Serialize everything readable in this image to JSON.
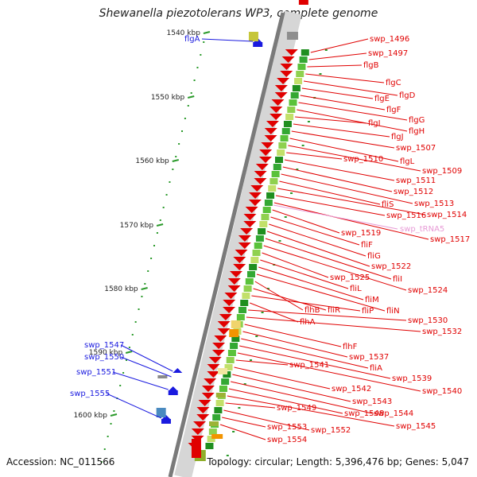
{
  "title": "Shewanella piezotolerans WP3, complete genome",
  "accession": "Accession: NC_011566",
  "summary": "Topology: circular; Length: 5,396,476 bp; Genes: 5,047",
  "ticks": [
    "1540 kbp",
    "1550 kbp",
    "1560 kbp",
    "1570 kbp",
    "1580 kbp",
    "1590 kbp",
    "1600 kbp"
  ],
  "forward_labels": [
    "swp_1496",
    "swp_1497",
    "flgB",
    "flgC",
    "flgD",
    "flgE",
    "flgF",
    "flgG",
    "flgH",
    "flgI",
    "flgJ",
    "swp_1507",
    "flgL",
    "swp_1509",
    "swp_1510",
    "swp_1511",
    "swp_1512",
    "swp_1513",
    "fliS",
    "swp_1514",
    "swp_1516",
    "swp_1517",
    "swp_1519",
    "fliF",
    "fliG",
    "swp_1522",
    "fliI",
    "swp_1524",
    "swp_1525",
    "fliL",
    "fliM",
    "fliN",
    "flhB",
    "fliR",
    "fliP",
    "flhA",
    "swp_1530",
    "swp_1532",
    "flhF",
    "swp_1537",
    "fliA",
    "swp_1539",
    "swp_1540",
    "swp_1541",
    "swp_1542",
    "swp_1543",
    "swp_1544",
    "swp_1548",
    "swp_1545",
    "swp_1549",
    "swp_1552",
    "swp_1553",
    "swp_1554"
  ],
  "trna_label": "swp_tRNA5",
  "reverse_labels": [
    "flgA",
    "swp_1547",
    "swp_1550",
    "swp_1551",
    "swp_1555"
  ],
  "colors": {
    "red": "#e00000",
    "blue": "#1a1adf",
    "pink": "#e79ad6",
    "green": "#2a9a2a",
    "orange": "#f29400"
  }
}
